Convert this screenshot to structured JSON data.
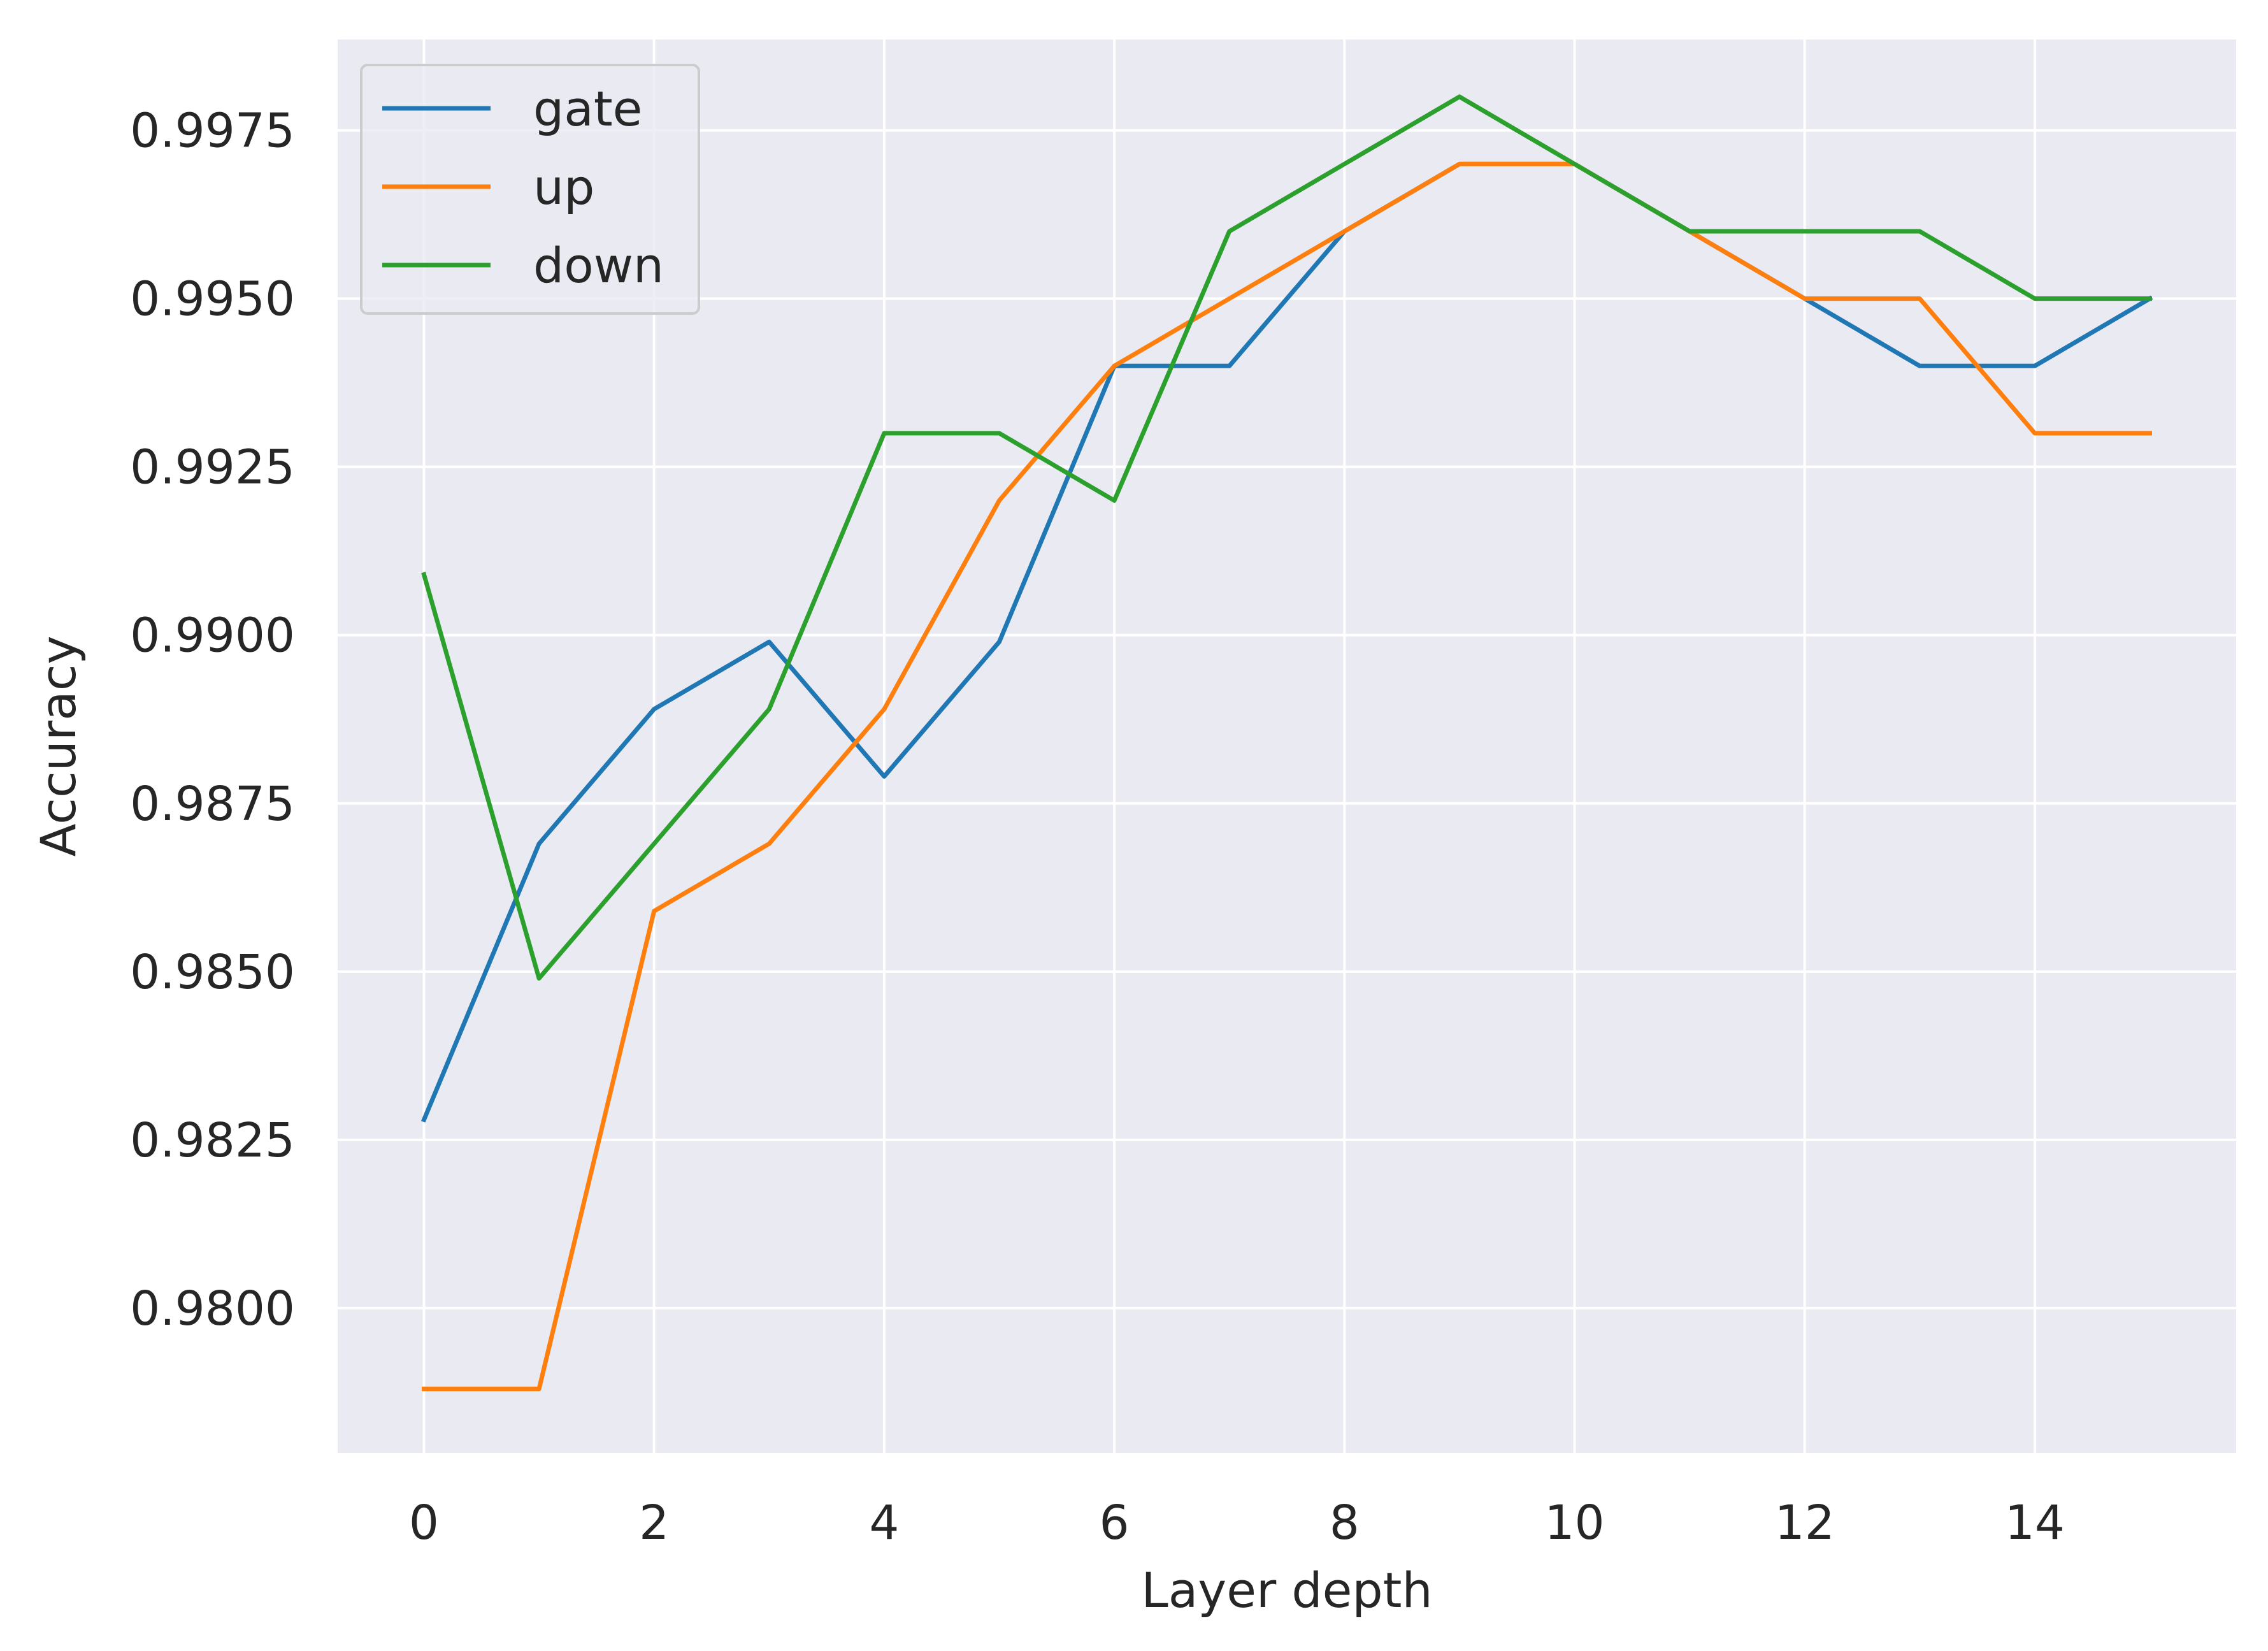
{
  "chart_data": {
    "type": "line",
    "xlabel": "Layer depth",
    "ylabel": "Accuracy",
    "x": [
      0,
      1,
      2,
      3,
      4,
      5,
      6,
      7,
      8,
      9,
      10,
      11,
      12,
      13,
      14,
      15
    ],
    "xlim": [
      -0.75,
      15.75
    ],
    "ylim": [
      0.97785,
      0.99885
    ],
    "xticks": [
      0,
      2,
      4,
      6,
      8,
      10,
      12,
      14
    ],
    "xtick_labels": [
      "0",
      "2",
      "4",
      "6",
      "8",
      "10",
      "12",
      "14"
    ],
    "yticks": [
      0.98,
      0.9825,
      0.985,
      0.9875,
      0.99,
      0.9925,
      0.995,
      0.9975
    ],
    "ytick_labels": [
      "0.9800",
      "0.9825",
      "0.9850",
      "0.9875",
      "0.9900",
      "0.9925",
      "0.9950",
      "0.9975"
    ],
    "grid": true,
    "legend_position": "top-left",
    "background_color": "#eaeaf2",
    "series": [
      {
        "name": "gate",
        "color": "#1f77b4",
        "values": [
          0.9828,
          0.9869,
          0.9889,
          0.9899,
          0.9879,
          0.9899,
          0.994,
          0.994,
          0.996,
          0.997,
          0.997,
          0.996,
          0.995,
          0.994,
          0.994,
          0.995
        ]
      },
      {
        "name": "up",
        "color": "#ff7f0e",
        "values": [
          0.9788,
          0.9788,
          0.9859,
          0.9869,
          0.9889,
          0.992,
          0.994,
          0.995,
          0.996,
          0.997,
          0.997,
          0.996,
          0.995,
          0.995,
          0.993,
          0.993
        ]
      },
      {
        "name": "down",
        "color": "#2ca02c",
        "values": [
          0.9909,
          0.9849,
          0.9869,
          0.9889,
          0.993,
          0.993,
          0.992,
          0.996,
          0.997,
          0.998,
          0.997,
          0.996,
          0.996,
          0.996,
          0.995,
          0.995
        ]
      }
    ]
  }
}
